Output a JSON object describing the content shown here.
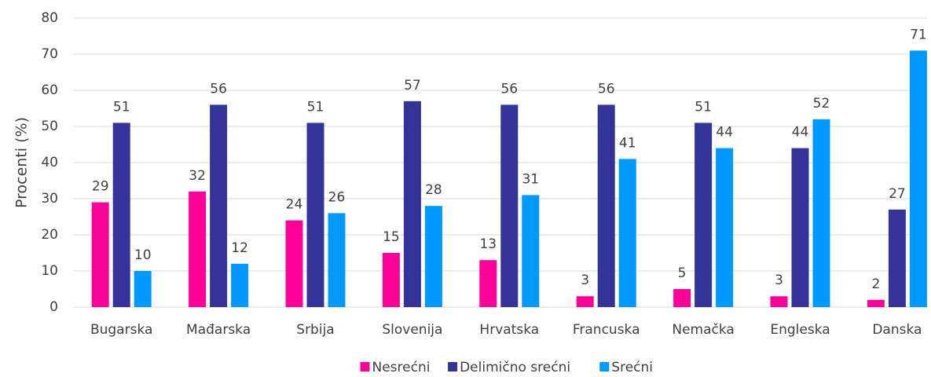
{
  "chart_data": {
    "type": "bar",
    "y_label": "Procenti (%)",
    "categories": [
      "Bugarska",
      "Mađarska",
      "Srbija",
      "Slovenija",
      "Hrvatska",
      "Francuska",
      "Nemačka",
      "Engleska",
      "Danska"
    ],
    "series": [
      {
        "name": "Nesrećni",
        "color": "#ff0099",
        "values": [
          29,
          32,
          24,
          15,
          13,
          3,
          5,
          3,
          2
        ]
      },
      {
        "name": "Delimično srećni",
        "color": "#333399",
        "values": [
          51,
          56,
          51,
          57,
          56,
          56,
          51,
          44,
          27
        ]
      },
      {
        "name": "Srećni",
        "color": "#0099ff",
        "values": [
          10,
          12,
          26,
          28,
          31,
          41,
          44,
          52,
          71
        ]
      }
    ],
    "ylim": [
      0,
      80
    ],
    "yticks": [
      0,
      10,
      20,
      30,
      40,
      50,
      60,
      70,
      80
    ],
    "grid": true,
    "legend": "bottom"
  }
}
